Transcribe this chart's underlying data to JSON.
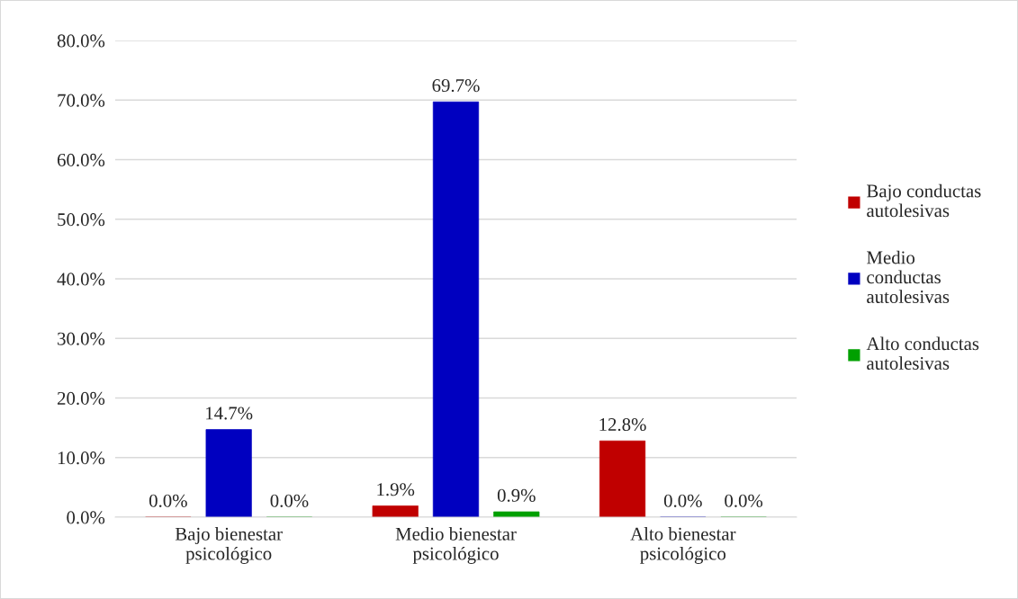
{
  "chart_data": {
    "type": "bar",
    "categories": [
      "Bajo bienestar\npsicológico",
      "Medio bienestar\npsicológico",
      "Alto bienestar\npsicológico"
    ],
    "series": [
      {
        "name": "Bajo conductas\nautolesivas",
        "color": "#c00000",
        "values": [
          0.0,
          1.9,
          12.8
        ],
        "value_labels": [
          "0.0%",
          "1.9%",
          "12.8%"
        ]
      },
      {
        "name": "Medio\nconductas\nautolesivas",
        "color": "#0000c0",
        "values": [
          14.7,
          69.7,
          0.0
        ],
        "value_labels": [
          "14.7%",
          "69.7%",
          "0.0%"
        ]
      },
      {
        "name": "Alto conductas\nautolesivas",
        "color": "#00a000",
        "values": [
          0.0,
          0.9,
          0.0
        ],
        "value_labels": [
          "0.0%",
          "0.9%",
          "0.0%"
        ]
      }
    ],
    "ylim": [
      0,
      80
    ],
    "yticks": [
      {
        "value": 0,
        "label": "0.0%"
      },
      {
        "value": 10,
        "label": "10.0%"
      },
      {
        "value": 20,
        "label": "20.0%"
      },
      {
        "value": 30,
        "label": "30.0%"
      },
      {
        "value": 40,
        "label": "40.0%"
      },
      {
        "value": 50,
        "label": "50.0%"
      },
      {
        "value": 60,
        "label": "60.0%"
      },
      {
        "value": 70,
        "label": "70.0%"
      },
      {
        "value": 80,
        "label": "80.0%"
      }
    ],
    "grid": "y",
    "legend": "right"
  }
}
